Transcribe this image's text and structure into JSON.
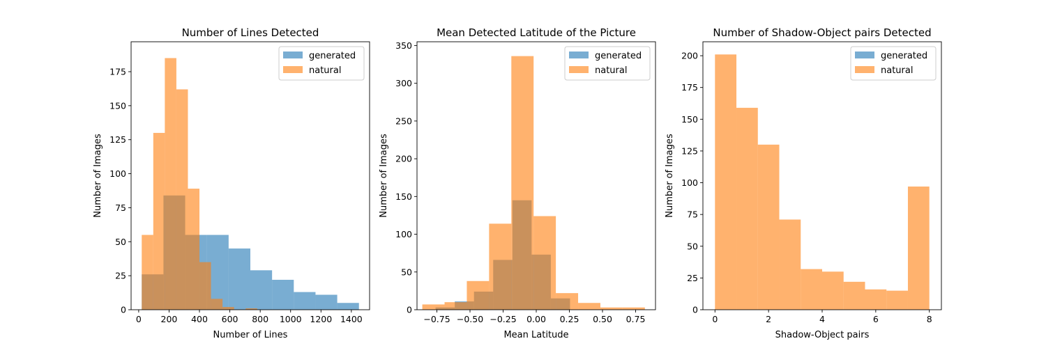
{
  "chart_data": [
    {
      "type": "bar",
      "title": "Number of Lines Detected",
      "xlabel": "Number of Lines",
      "ylabel": "Number of Images",
      "xlim": [
        -50,
        1520
      ],
      "ylim": [
        0,
        197
      ],
      "xticks": [
        0,
        200,
        400,
        600,
        800,
        1000,
        1200,
        1400
      ],
      "xtick_labels": [
        "0",
        "200",
        "400",
        "600",
        "800",
        "1000",
        "1200",
        "1400"
      ],
      "yticks": [
        0,
        25,
        50,
        75,
        100,
        125,
        150,
        175
      ],
      "ytick_labels": [
        "0",
        "25",
        "50",
        "75",
        "100",
        "125",
        "150",
        "175"
      ],
      "legend_position": "upper-right",
      "series": [
        {
          "name": "generated",
          "color": "#1f77b4",
          "edges": [
            20,
            163,
            306,
            449,
            592,
            735,
            878,
            1021,
            1164,
            1307,
            1450
          ],
          "counts": [
            26,
            84,
            55,
            55,
            45,
            29,
            22,
            13,
            11,
            5
          ]
        },
        {
          "name": "natural",
          "color": "#ff7f0e",
          "edges": [
            20,
            96,
            172,
            248,
            324,
            400,
            476,
            552,
            628,
            704,
            780
          ],
          "counts": [
            55,
            130,
            185,
            162,
            89,
            35,
            8,
            2,
            0,
            1
          ]
        }
      ]
    },
    {
      "type": "bar",
      "title": "Mean Detected Latitude of the Picture",
      "xlabel": "Mean Latitude",
      "ylabel": "Number of Images",
      "xlim": [
        -0.9,
        0.9
      ],
      "ylim": [
        0,
        355
      ],
      "xticks": [
        -0.75,
        -0.5,
        -0.25,
        0,
        0.25,
        0.5,
        0.75
      ],
      "xtick_labels": [
        "−0.75",
        "−0.50",
        "−0.25",
        "0.00",
        "0.25",
        "0.50",
        "0.75"
      ],
      "yticks": [
        0,
        50,
        100,
        150,
        200,
        250,
        300,
        350
      ],
      "ytick_labels": [
        "0",
        "50",
        "100",
        "150",
        "200",
        "250",
        "300",
        "350"
      ],
      "legend_position": "upper-right",
      "series": [
        {
          "name": "generated",
          "color": "#1f77b4",
          "edges": [
            -0.76,
            -0.615,
            -0.47,
            -0.325,
            -0.18,
            -0.035,
            0.11,
            0.255
          ],
          "counts": [
            3,
            11,
            24,
            66,
            145,
            73,
            15
          ]
        },
        {
          "name": "natural",
          "color": "#ff7f0e",
          "edges": [
            -0.86,
            -0.692,
            -0.524,
            -0.356,
            -0.188,
            -0.02,
            0.148,
            0.316,
            0.484,
            0.652,
            0.82
          ],
          "counts": [
            7,
            10,
            38,
            114,
            336,
            124,
            22,
            9,
            3,
            3
          ]
        }
      ]
    },
    {
      "type": "bar",
      "title": "Number of Shadow-Object pairs Detected",
      "xlabel": "Shadow-Object pairs",
      "ylabel": "Number of Images",
      "xlim": [
        -0.45,
        8.45
      ],
      "ylim": [
        0,
        211
      ],
      "xticks": [
        0,
        2,
        4,
        6,
        8
      ],
      "xtick_labels": [
        "0",
        "2",
        "4",
        "6",
        "8"
      ],
      "yticks": [
        0,
        25,
        50,
        75,
        100,
        125,
        150,
        175,
        200
      ],
      "ytick_labels": [
        "0",
        "25",
        "50",
        "75",
        "100",
        "125",
        "150",
        "175",
        "200"
      ],
      "legend_position": "upper-right",
      "series": [
        {
          "name": "generated",
          "color": "#1f77b4",
          "edges": [],
          "counts": []
        },
        {
          "name": "natural",
          "color": "#ff7f0e",
          "edges": [
            0,
            0.8,
            1.6,
            2.4,
            3.2,
            4.0,
            4.8,
            5.6,
            6.4,
            7.2,
            8.0
          ],
          "counts": [
            201,
            159,
            130,
            71,
            32,
            30,
            22,
            16,
            15,
            97
          ]
        }
      ]
    }
  ]
}
